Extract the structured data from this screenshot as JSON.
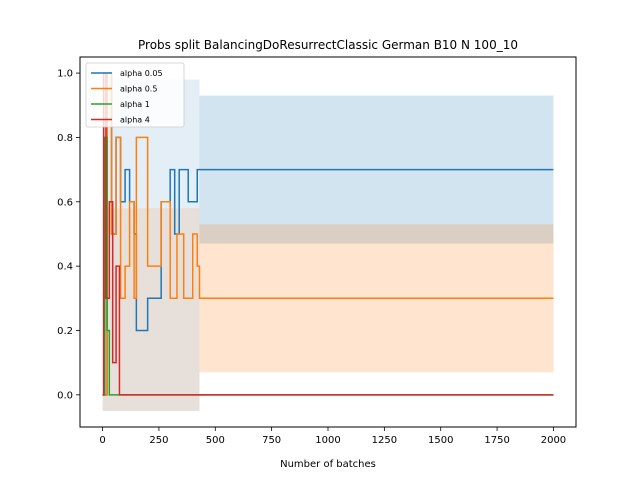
{
  "chart_data": {
    "type": "line",
    "title": "Probs split BalancingDoResurrectClassic German B10 N 100_10",
    "xlabel": "Number of batches",
    "ylabel": "",
    "xlim": [
      -100,
      2100
    ],
    "ylim": [
      -0.1,
      1.05
    ],
    "xticks": [
      0,
      250,
      500,
      750,
      1000,
      1250,
      1500,
      1750,
      2000
    ],
    "yticks": [
      0.0,
      0.2,
      0.4,
      0.6,
      0.8,
      1.0
    ],
    "xtick_labels": [
      "0",
      "250",
      "500",
      "750",
      "1000",
      "1250",
      "1500",
      "1750",
      "2000"
    ],
    "ytick_labels": [
      "0.0",
      "0.2",
      "0.4",
      "0.6",
      "0.8",
      "1.0"
    ],
    "grid": false,
    "legend_position": "top-left",
    "series": [
      {
        "name": "alpha 0.05",
        "color": "#1f77b4",
        "final_value": 0.7,
        "final_band": [
          0.47,
          0.93
        ],
        "points": [
          [
            0,
            0.0
          ],
          [
            20,
            1.0
          ],
          [
            40,
            0.5
          ],
          [
            60,
            0.8
          ],
          [
            80,
            0.6
          ],
          [
            100,
            0.7
          ],
          [
            120,
            0.6
          ],
          [
            140,
            0.5
          ],
          [
            150,
            0.2
          ],
          [
            200,
            0.3
          ],
          [
            260,
            0.6
          ],
          [
            300,
            0.7
          ],
          [
            320,
            0.5
          ],
          [
            340,
            0.7
          ],
          [
            380,
            0.6
          ],
          [
            420,
            0.7
          ],
          [
            430,
            0.7
          ],
          [
            2000,
            0.7
          ]
        ]
      },
      {
        "name": "alpha 0.5",
        "color": "#ff7f0e",
        "final_value": 0.3,
        "final_band": [
          0.07,
          0.53
        ],
        "points": [
          [
            0,
            0.0
          ],
          [
            20,
            1.0
          ],
          [
            40,
            0.5
          ],
          [
            60,
            0.8
          ],
          [
            80,
            0.3
          ],
          [
            100,
            0.4
          ],
          [
            120,
            0.6
          ],
          [
            140,
            0.3
          ],
          [
            150,
            0.8
          ],
          [
            200,
            0.4
          ],
          [
            260,
            0.6
          ],
          [
            300,
            0.3
          ],
          [
            330,
            0.5
          ],
          [
            360,
            0.3
          ],
          [
            400,
            0.5
          ],
          [
            420,
            0.4
          ],
          [
            430,
            0.3
          ],
          [
            2000,
            0.3
          ]
        ]
      },
      {
        "name": "alpha 1",
        "color": "#2ca02c",
        "final_value": 0.0,
        "points": [
          [
            0,
            0.0
          ],
          [
            10,
            0.8
          ],
          [
            20,
            0.2
          ],
          [
            30,
            0.0
          ],
          [
            2000,
            0.0
          ]
        ]
      },
      {
        "name": "alpha 4",
        "color": "#d62728",
        "final_value": 0.0,
        "points": [
          [
            0,
            0.0
          ],
          [
            5,
            1.0
          ],
          [
            15,
            0.3
          ],
          [
            30,
            0.6
          ],
          [
            45,
            0.1
          ],
          [
            60,
            0.4
          ],
          [
            75,
            0.0
          ],
          [
            2000,
            0.0
          ]
        ]
      }
    ]
  }
}
